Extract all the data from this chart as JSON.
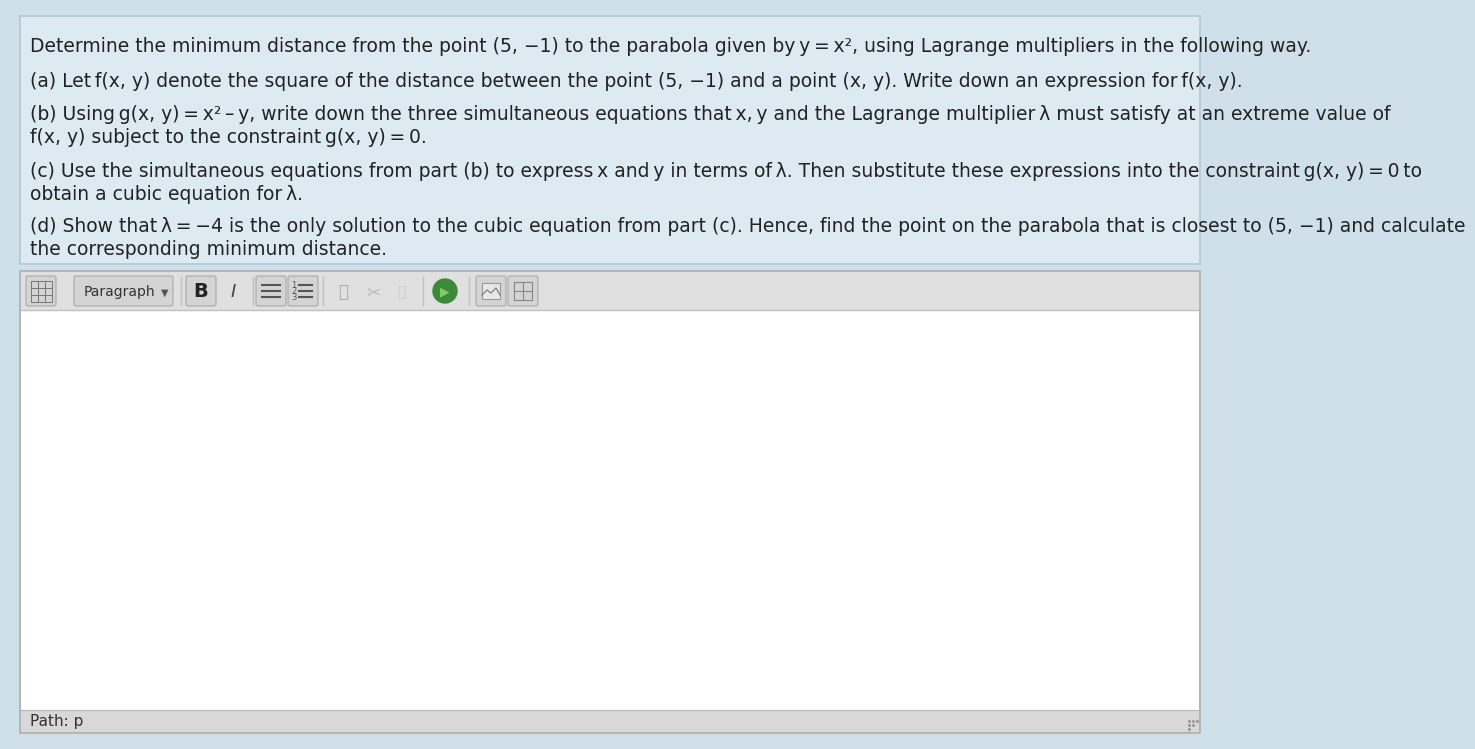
{
  "bg_color": "#cfe0ea",
  "text_block_bg": "#ddeaf2",
  "text_block_border": "#b0c8d8",
  "editor_outer_bg": "#c8c8c8",
  "editor_border": "#b0b0b0",
  "toolbar_bg": "#e0e0e0",
  "toolbar_border": "#c0c0c0",
  "edit_area_bg": "#ffffff",
  "pathbar_bg": "#d8d8d8",
  "pathbar_border": "#b8b8b8",
  "text_color": "#222222",
  "title_line": "Determine the minimum distance from the point (5, −1) to the parabola given by y = x², using Lagrange multipliers in the following way.",
  "part_a": "(a) Let f(x, y) denote the square of the distance between the point (5, −1) and a point (x, y). Write down an expression for f(x, y).",
  "part_b1": "(b) Using g(x, y) = x² – y, write down the three simultaneous equations that x, y and the Lagrange multiplier λ must satisfy at an extreme value of",
  "part_b2": "f(x, y) subject to the constraint g(x, y) = 0.",
  "part_c1": "(c) Use the simultaneous equations from part (b) to express x and y in terms of λ. Then substitute these expressions into the constraint g(x, y) = 0 to",
  "part_c2": "obtain a cubic equation for λ.",
  "part_d1": "(d) Show that λ = −4 is the only solution to the cubic equation from part (c). Hence, find the point on the parabola that is closest to (5, −1) and calculate",
  "part_d2": "the corresponding minimum distance.",
  "path_text": "Path: p",
  "paragraph_text": "Paragraph",
  "font_size_main": 13.5,
  "font_size_path": 11,
  "font_size_toolbar": 12
}
